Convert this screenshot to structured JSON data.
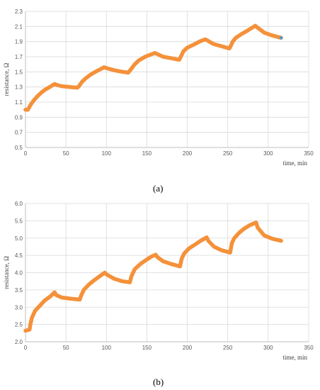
{
  "chart_data": [
    {
      "type": "line",
      "panel": "(a)",
      "xlabel": "time, min",
      "ylabel": "resistance, Ω",
      "xlim": [
        0,
        350
      ],
      "ylim": [
        0.5,
        2.3
      ],
      "xticks": [
        "0",
        "50",
        "100",
        "150",
        "200",
        "250",
        "300",
        "350"
      ],
      "yticks": [
        "0.5",
        "0.7",
        "0.9",
        "1.1",
        "1.3",
        "1.5",
        "1.7",
        "1.9",
        "2.1",
        "2.3"
      ],
      "grid": true,
      "line_color": "#f4913a",
      "marker_color": "#4b9fd6",
      "series": [
        {
          "x": [
            0,
            3,
            6,
            10,
            15,
            20,
            25,
            30,
            36,
            38,
            45,
            55,
            64,
            66,
            70,
            75,
            80,
            88,
            97,
            100,
            110,
            120,
            127,
            130,
            135,
            140,
            148,
            155,
            160,
            162,
            170,
            180,
            190,
            192,
            195,
            200,
            208,
            215,
            222,
            224,
            232,
            242,
            252,
            254,
            256,
            260,
            267,
            275,
            284,
            286,
            295,
            305,
            316
          ],
          "y": [
            1.0,
            1.0,
            1.06,
            1.12,
            1.18,
            1.23,
            1.27,
            1.3,
            1.34,
            1.33,
            1.31,
            1.3,
            1.29,
            1.31,
            1.37,
            1.42,
            1.46,
            1.51,
            1.56,
            1.55,
            1.52,
            1.5,
            1.49,
            1.53,
            1.6,
            1.65,
            1.7,
            1.73,
            1.75,
            1.74,
            1.7,
            1.68,
            1.66,
            1.7,
            1.77,
            1.82,
            1.86,
            1.9,
            1.93,
            1.92,
            1.87,
            1.84,
            1.81,
            1.85,
            1.9,
            1.95,
            2.0,
            2.05,
            2.11,
            2.09,
            2.02,
            1.98,
            1.95
          ]
        }
      ]
    },
    {
      "type": "line",
      "panel": "(b)",
      "xlabel": "time, min",
      "ylabel": "resistance, Ω",
      "xlim": [
        0,
        350
      ],
      "ylim": [
        2.0,
        6.0
      ],
      "xticks": [
        "0",
        "50",
        "100",
        "150",
        "200",
        "250",
        "300",
        "350"
      ],
      "yticks": [
        "2.0",
        "2.5",
        "3.0",
        "3.5",
        "4.0",
        "4.5",
        "5.0",
        "5.5",
        "6.0"
      ],
      "grid": true,
      "line_color": "#f4913a",
      "series": [
        {
          "x": [
            0,
            5,
            6,
            8,
            12,
            18,
            24,
            30,
            36,
            38,
            45,
            55,
            67,
            69,
            72,
            78,
            85,
            92,
            98,
            100,
            110,
            120,
            129,
            131,
            135,
            142,
            150,
            156,
            161,
            163,
            170,
            180,
            191,
            193,
            196,
            202,
            210,
            217,
            224,
            226,
            233,
            242,
            253,
            255,
            258,
            264,
            270,
            277,
            285,
            287,
            295,
            305,
            316
          ],
          "y": [
            2.32,
            2.35,
            2.5,
            2.7,
            2.9,
            3.05,
            3.2,
            3.3,
            3.43,
            3.35,
            3.28,
            3.25,
            3.22,
            3.35,
            3.5,
            3.65,
            3.78,
            3.9,
            4.0,
            3.95,
            3.82,
            3.75,
            3.72,
            3.9,
            4.1,
            4.25,
            4.38,
            4.47,
            4.52,
            4.45,
            4.33,
            4.25,
            4.18,
            4.4,
            4.55,
            4.7,
            4.82,
            4.93,
            5.02,
            4.92,
            4.75,
            4.65,
            4.58,
            4.85,
            5.0,
            5.15,
            5.27,
            5.37,
            5.45,
            5.3,
            5.08,
            4.98,
            4.92
          ]
        }
      ]
    }
  ],
  "captions": [
    "(a)",
    "(b)"
  ]
}
